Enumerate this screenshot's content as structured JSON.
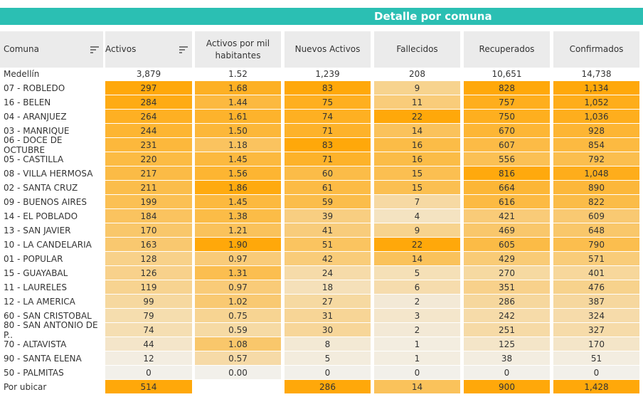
{
  "header": {
    "title": "Detalle por comuna"
  },
  "columns": [
    "Comuna",
    "Activos",
    "Activos por mil habitantes",
    "Nuevos Activos",
    "Fallecidos",
    "Recuperados",
    "Confirmados"
  ],
  "total": {
    "label": "Medellín",
    "values": [
      "3,879",
      "1.52",
      "1,239",
      "208",
      "10,651",
      "14,738"
    ]
  },
  "rows": [
    {
      "comuna": "07 - ROBLEDO",
      "values": [
        "297",
        "1.68",
        "83",
        "9",
        "828",
        "1,134"
      ]
    },
    {
      "comuna": "16 - BELEN",
      "values": [
        "284",
        "1.44",
        "75",
        "11",
        "757",
        "1,052"
      ]
    },
    {
      "comuna": "04 - ARANJUEZ",
      "values": [
        "264",
        "1.61",
        "74",
        "22",
        "750",
        "1,036"
      ]
    },
    {
      "comuna": "03 - MANRIQUE",
      "values": [
        "244",
        "1.50",
        "71",
        "14",
        "670",
        "928"
      ]
    },
    {
      "comuna": "06 - DOCE DE OCTUBRE",
      "values": [
        "231",
        "1.18",
        "83",
        "16",
        "607",
        "854"
      ]
    },
    {
      "comuna": "05 - CASTILLA",
      "values": [
        "220",
        "1.45",
        "71",
        "16",
        "556",
        "792"
      ]
    },
    {
      "comuna": "08 - VILLA HERMOSA",
      "values": [
        "217",
        "1.56",
        "60",
        "15",
        "816",
        "1,048"
      ]
    },
    {
      "comuna": "02 - SANTA CRUZ",
      "values": [
        "211",
        "1.86",
        "61",
        "15",
        "664",
        "890"
      ]
    },
    {
      "comuna": "09 - BUENOS AIRES",
      "values": [
        "199",
        "1.45",
        "59",
        "7",
        "616",
        "822"
      ]
    },
    {
      "comuna": "14 - EL POBLADO",
      "values": [
        "184",
        "1.38",
        "39",
        "4",
        "421",
        "609"
      ]
    },
    {
      "comuna": "13 - SAN JAVIER",
      "values": [
        "170",
        "1.21",
        "41",
        "9",
        "469",
        "648"
      ]
    },
    {
      "comuna": "10 - LA CANDELARIA",
      "values": [
        "163",
        "1.90",
        "51",
        "22",
        "605",
        "790"
      ]
    },
    {
      "comuna": "01 - POPULAR",
      "values": [
        "128",
        "0.97",
        "42",
        "14",
        "429",
        "571"
      ]
    },
    {
      "comuna": "15 - GUAYABAL",
      "values": [
        "126",
        "1.31",
        "24",
        "5",
        "270",
        "401"
      ]
    },
    {
      "comuna": "11 - LAURELES",
      "values": [
        "119",
        "0.97",
        "18",
        "6",
        "351",
        "476"
      ]
    },
    {
      "comuna": "12 - LA AMERICA",
      "values": [
        "99",
        "1.02",
        "27",
        "2",
        "286",
        "387"
      ]
    },
    {
      "comuna": "60 - SAN CRISTOBAL",
      "values": [
        "79",
        "0.75",
        "31",
        "3",
        "242",
        "324"
      ]
    },
    {
      "comuna": "80 - SAN ANTONIO DE P..",
      "values": [
        "74",
        "0.59",
        "30",
        "2",
        "251",
        "327"
      ]
    },
    {
      "comuna": "70 - ALTAVISTA",
      "values": [
        "44",
        "1.08",
        "8",
        "1",
        "125",
        "170"
      ]
    },
    {
      "comuna": "90 - SANTA ELENA",
      "values": [
        "12",
        "0.57",
        "5",
        "1",
        "38",
        "51"
      ]
    },
    {
      "comuna": "50 - PALMITAS",
      "values": [
        "0",
        "0.00",
        "0",
        "0",
        "0",
        "0"
      ]
    }
  ],
  "footer": {
    "label": "Por ubicar",
    "values": [
      "514",
      null,
      "286",
      "14",
      "900",
      "1,428"
    ]
  }
}
